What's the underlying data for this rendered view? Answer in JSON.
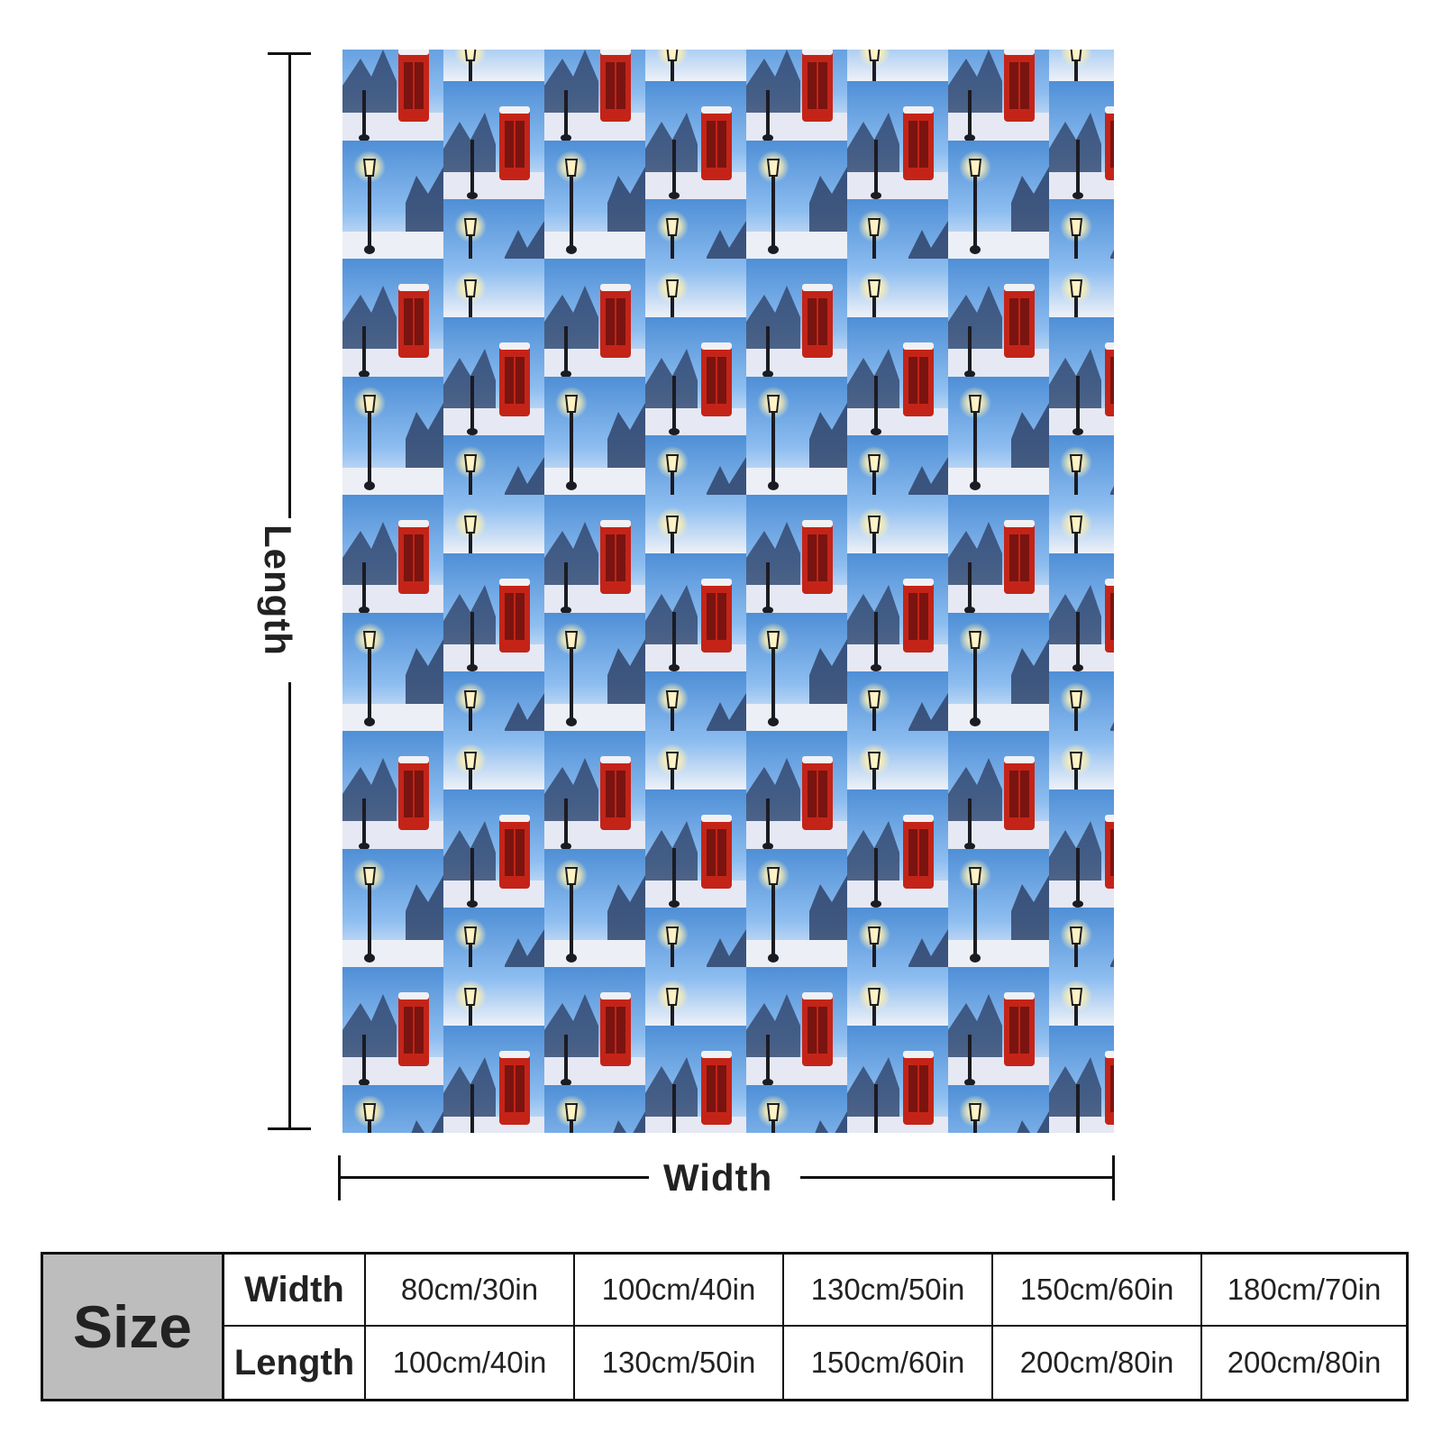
{
  "diagram": {
    "length_label": "Length",
    "width_label": "Width"
  },
  "table": {
    "size_label": "Size",
    "width_label": "Width",
    "length_label": "Length",
    "widths": [
      "80cm/30in",
      "100cm/40in",
      "130cm/50in",
      "150cm/60in",
      "180cm/70in"
    ],
    "lengths": [
      "100cm/40in",
      "130cm/50in",
      "150cm/60in",
      "200cm/80in",
      "200cm/80in"
    ]
  },
  "colors": {
    "sky": "#6da5e0",
    "snow": "#e8ecf5",
    "phone_box": "#c42418",
    "lamp_post": "#1b1b22",
    "lamp_light": "#fff3c4",
    "size_header_bg": "#bdbdbd"
  }
}
